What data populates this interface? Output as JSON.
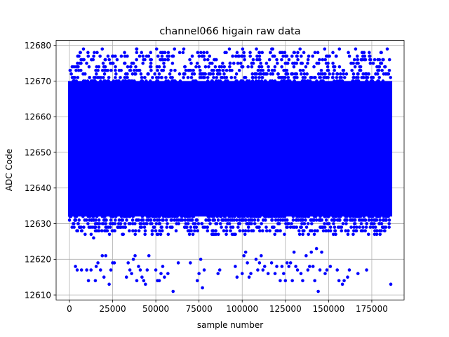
{
  "chart_data": {
    "type": "scatter",
    "title": "channel066 higain raw data",
    "xlabel": "sample number",
    "ylabel": "ADC Code",
    "xlim": [
      -7700,
      193700
    ],
    "ylim": [
      12608.6,
      12681.4
    ],
    "x_ticks": [
      0,
      25000,
      50000,
      75000,
      100000,
      125000,
      150000,
      175000
    ],
    "y_ticks": [
      12610,
      12620,
      12630,
      12640,
      12650,
      12660,
      12670,
      12680
    ],
    "grid": true,
    "legend": "none",
    "marker_color": "#0000ff",
    "dense_band": {
      "x_range": [
        0,
        186000
      ],
      "y_range": [
        12632,
        12670
      ]
    },
    "main_points_x_extent": [
      0,
      186000
    ],
    "main_points_y_range": [
      12627,
      12679
    ],
    "outliers": [
      [
        3500,
        12618
      ],
      [
        4500,
        12617
      ],
      [
        7000,
        12617
      ],
      [
        10000,
        12617
      ],
      [
        11000,
        12614
      ],
      [
        12500,
        12617
      ],
      [
        14000,
        12626
      ],
      [
        15000,
        12614
      ],
      [
        15500,
        12618
      ],
      [
        16500,
        12619
      ],
      [
        18000,
        12617
      ],
      [
        19000,
        12621
      ],
      [
        20000,
        12615
      ],
      [
        21000,
        12621
      ],
      [
        23000,
        12613
      ],
      [
        24000,
        12617
      ],
      [
        25000,
        12619
      ],
      [
        26000,
        12619
      ],
      [
        33000,
        12615
      ],
      [
        34000,
        12619
      ],
      [
        35000,
        12617
      ],
      [
        36000,
        12616
      ],
      [
        37000,
        12620
      ],
      [
        38000,
        12621
      ],
      [
        39000,
        12614
      ],
      [
        40000,
        12618
      ],
      [
        41000,
        12617
      ],
      [
        42000,
        12615
      ],
      [
        43000,
        12614
      ],
      [
        44000,
        12613
      ],
      [
        45000,
        12617
      ],
      [
        46000,
        12621
      ],
      [
        50000,
        12617
      ],
      [
        51000,
        12614
      ],
      [
        52000,
        12614
      ],
      [
        53000,
        12616
      ],
      [
        54000,
        12618
      ],
      [
        55000,
        12615
      ],
      [
        57000,
        12616
      ],
      [
        60000,
        12611
      ],
      [
        63000,
        12619
      ],
      [
        70000,
        12619
      ],
      [
        74000,
        12614
      ],
      [
        75000,
        12616
      ],
      [
        76000,
        12620
      ],
      [
        77000,
        12612
      ],
      [
        78000,
        12617
      ],
      [
        86000,
        12616
      ],
      [
        87000,
        12617
      ],
      [
        96000,
        12618
      ],
      [
        97000,
        12615
      ],
      [
        100000,
        12616
      ],
      [
        101000,
        12621
      ],
      [
        102000,
        12622
      ],
      [
        103000,
        12619
      ],
      [
        104000,
        12615
      ],
      [
        105000,
        12616
      ],
      [
        108000,
        12620
      ],
      [
        109000,
        12617
      ],
      [
        110000,
        12619
      ],
      [
        111000,
        12621
      ],
      [
        112000,
        12617
      ],
      [
        113000,
        12618
      ],
      [
        115000,
        12616
      ],
      [
        117000,
        12619
      ],
      [
        119000,
        12616
      ],
      [
        120000,
        12618
      ],
      [
        122000,
        12614
      ],
      [
        123000,
        12618
      ],
      [
        124000,
        12616
      ],
      [
        125000,
        12614
      ],
      [
        126000,
        12619
      ],
      [
        127000,
        12618
      ],
      [
        128000,
        12619
      ],
      [
        129000,
        12614
      ],
      [
        130000,
        12622
      ],
      [
        131000,
        12618
      ],
      [
        132000,
        12617
      ],
      [
        134000,
        12616
      ],
      [
        135000,
        12614
      ],
      [
        137000,
        12621
      ],
      [
        138000,
        12617
      ],
      [
        139000,
        12618
      ],
      [
        140000,
        12622
      ],
      [
        141000,
        12618
      ],
      [
        142000,
        12614
      ],
      [
        143000,
        12623
      ],
      [
        144000,
        12611
      ],
      [
        145000,
        12617
      ],
      [
        146000,
        12622
      ],
      [
        148000,
        12616
      ],
      [
        149000,
        12617
      ],
      [
        151000,
        12618
      ],
      [
        155000,
        12617
      ],
      [
        156000,
        12614
      ],
      [
        158000,
        12613
      ],
      [
        159000,
        12614
      ],
      [
        161000,
        12615
      ],
      [
        162000,
        12617
      ],
      [
        167000,
        12616
      ],
      [
        172000,
        12617
      ],
      [
        186000,
        12613
      ]
    ]
  }
}
